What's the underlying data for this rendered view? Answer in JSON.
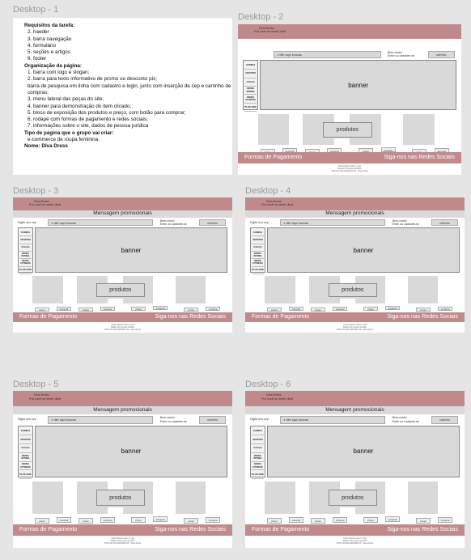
{
  "frames": [
    {
      "label": "Desktop - 1"
    },
    {
      "label": "Desktop - 2"
    },
    {
      "label": "Desktop - 3"
    },
    {
      "label": "Desktop - 4"
    },
    {
      "label": "Desktop - 5"
    },
    {
      "label": "Desktop - 6"
    }
  ],
  "requirements": {
    "lines": [
      {
        "text": "Requisitos da tarefa:",
        "bold": true
      },
      {
        "text": "2. haeder",
        "bold": false
      },
      {
        "text": "3. barra navegação",
        "bold": false
      },
      {
        "text": "4. formulário",
        "bold": false
      },
      {
        "text": "5. seções e artigos",
        "bold": false
      },
      {
        "text": "6. footer",
        "bold": false
      },
      {
        "text": "Organização da página:",
        "bold": true
      },
      {
        "text": "1. barra com logo e slogan;",
        "bold": false
      },
      {
        "text": "2. barra para texto informativo de promo ou desconto pix;",
        "bold": false
      },
      {
        "text": "barra de pesquisa em linha com cadastro e login, junto com inserção de cep e carrinho de compras;",
        "bold": false
      },
      {
        "text": "3. menu lateral das peças do site;",
        "bold": false
      },
      {
        "text": "4. banner para demonstração do item clicado;",
        "bold": false
      },
      {
        "text": "5. bloco de exposição dos produtos e preço, com botão para comprar;",
        "bold": false
      },
      {
        "text": "6. rodapé com formas de pagamento e redes sociais;",
        "bold": false
      },
      {
        "text": "7. informações sobre o site, dados de pessoa jurídica",
        "bold": false
      },
      {
        "text": "Tipo de página que o grupo vai criar:",
        "bold": true
      },
      {
        "text": "e-commerce de roupa feminina;",
        "bold": false
      },
      {
        "text": "Nome: Diva Dress",
        "bold": true
      }
    ]
  },
  "mockup": {
    "logo_name": "Diva Dress",
    "slogan": "Pra você se sentir diva!",
    "promo": "Mensagem promocionais",
    "cep": "Digite seu cep",
    "search_placeholder": "⌕ dite aqui buscas",
    "login_line1": "Bem-vindo!",
    "login_line2": "Entre ou cadastre-se",
    "cart": "carrinho",
    "menu": [
      "CAMISA",
      "VESTIDO",
      "CALÇA",
      "MODA ÍNTIMA",
      "MODA FITNESS",
      "PLUS SIZE"
    ],
    "banner": "banner",
    "products": "produtos",
    "buttons": [
      "preço",
      "comprar",
      "preço",
      "comprar",
      "preço",
      "comprar",
      "preço",
      "comprar"
    ],
    "footer_left": "Formas de Pagamento",
    "footer_right": "Siga-nos nas Redes Sociais",
    "info_lines": [
      "Informações sobre o site",
      "Dados de pessoa jurídica",
      "CNPJ 00.000.000/0001-00 · Diva Dress"
    ]
  },
  "colors": {
    "header": "#c08a8b",
    "canvas": "#e5e5e5",
    "panel": "#d9d9d9"
  }
}
